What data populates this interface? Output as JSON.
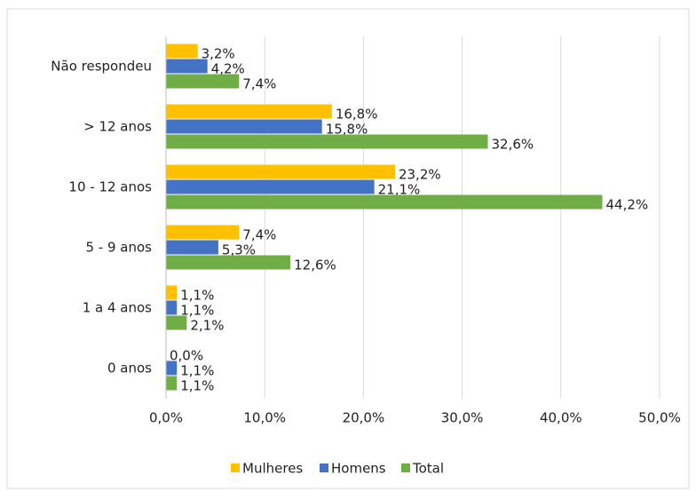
{
  "chart_data": {
    "type": "bar",
    "orientation": "horizontal",
    "categories": [
      "Não respondeu",
      "> 12 anos",
      "10 - 12 anos",
      "5 - 9 anos",
      "1 a 4 anos",
      "0 anos"
    ],
    "series": [
      {
        "name": "Mulheres",
        "color": "#FFC000",
        "values": [
          3.2,
          16.8,
          23.2,
          7.4,
          1.1,
          0.0
        ],
        "value_labels": [
          "3,2%",
          "16,8%",
          "23,2%",
          "7,4%",
          "1,1%",
          "0,0%"
        ]
      },
      {
        "name": "Homens",
        "color": "#4472C4",
        "values": [
          4.2,
          15.8,
          21.1,
          5.3,
          1.1,
          1.1
        ],
        "value_labels": [
          "4,2%",
          "15,8%",
          "21,1%",
          "5,3%",
          "1,1%",
          "1,1%"
        ]
      },
      {
        "name": "Total",
        "color": "#70AD47",
        "values": [
          7.4,
          32.6,
          44.2,
          12.6,
          2.1,
          1.1
        ],
        "value_labels": [
          "7,4%",
          "32,6%",
          "44,2%",
          "12,6%",
          "2,1%",
          "1,1%"
        ]
      }
    ],
    "xlim": [
      0,
      50
    ],
    "xticks": [
      {
        "value": 0,
        "label": "0,0%"
      },
      {
        "value": 10,
        "label": "10,0%"
      },
      {
        "value": 20,
        "label": "20,0%"
      },
      {
        "value": 30,
        "label": "30,0%"
      },
      {
        "value": 40,
        "label": "40,0%"
      },
      {
        "value": 50,
        "label": "50,0%"
      }
    ],
    "grid": true,
    "legend": "bottom"
  }
}
